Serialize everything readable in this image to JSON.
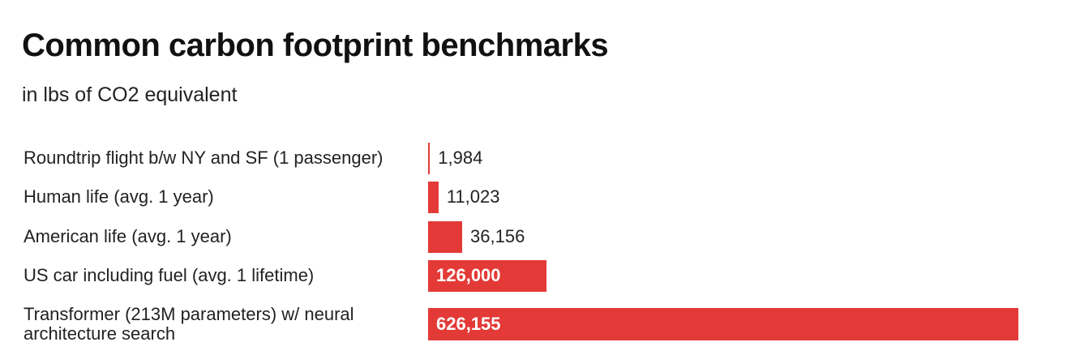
{
  "chart_data": {
    "type": "bar",
    "orientation": "horizontal",
    "title": "Common carbon footprint benchmarks",
    "subtitle": "in lbs of CO2 equivalent",
    "categories": [
      "Roundtrip flight b/w NY and SF (1 passenger)",
      "Human life (avg. 1 year)",
      "American life (avg. 1 year)",
      "US car including fuel (avg. 1 lifetime)",
      "Transformer (213M parameters) w/ neural architecture search"
    ],
    "values": [
      1984,
      11023,
      36156,
      126000,
      626155
    ],
    "value_labels": [
      "1,984",
      "11,023",
      "36,156",
      "126,000",
      "626,155"
    ],
    "color": "#e33a37"
  }
}
